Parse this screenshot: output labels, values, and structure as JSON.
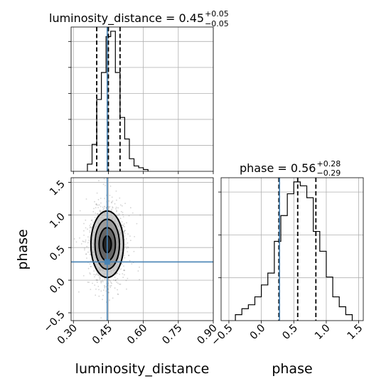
{
  "chart_data": {
    "type": "corner",
    "parameters": [
      "luminosity_distance",
      "phase"
    ],
    "truths": {
      "luminosity_distance": 0.445,
      "phase": 0.28
    },
    "luminosity_distance": {
      "title": "luminosity_distance = 0.45",
      "title_sup": "+0.05",
      "title_sub": "−0.05",
      "xlabel": "luminosity_distance",
      "xlim": [
        0.29,
        0.9
      ],
      "xticks": [
        "0.30",
        "0.45",
        "0.60",
        "0.75",
        "0.90"
      ],
      "quantiles": [
        0.4,
        0.45,
        0.5
      ],
      "hist_bins": [
        0.36,
        0.38,
        0.4,
        0.42,
        0.44,
        0.46,
        0.48,
        0.5,
        0.52,
        0.54,
        0.56,
        0.58,
        0.6,
        0.62
      ],
      "hist_counts": [
        4,
        15,
        40,
        55,
        75,
        78,
        55,
        30,
        18,
        7,
        3,
        2,
        1
      ]
    },
    "phase": {
      "title": "phase = 0.56",
      "title_sup": "+0.28",
      "title_sub": "−0.29",
      "xlabel": "phase",
      "ylabel": "phase",
      "xlim": [
        -0.62,
        1.57
      ],
      "ylim": [
        -0.62,
        1.57
      ],
      "ticks": [
        "−0.5",
        "0.0",
        "0.5",
        "1.0",
        "1.5"
      ],
      "quantiles": [
        0.27,
        0.56,
        0.84
      ],
      "hist_bins": [
        -0.4,
        -0.3,
        -0.2,
        -0.1,
        0.0,
        0.1,
        0.2,
        0.3,
        0.4,
        0.5,
        0.6,
        0.7,
        0.8,
        0.9,
        1.0,
        1.1,
        1.2,
        1.3,
        1.4
      ],
      "hist_counts": [
        3,
        6,
        8,
        12,
        18,
        24,
        40,
        53,
        64,
        70,
        68,
        62,
        45,
        35,
        22,
        12,
        7,
        3
      ]
    },
    "scatter": {
      "mean": [
        0.445,
        0.55
      ],
      "sd": [
        0.035,
        0.3
      ],
      "contour_levels": [
        0.5,
        1.0,
        1.5,
        2.0
      ]
    },
    "colors": {
      "truth": "#4682b4",
      "hist": "#000000",
      "grid": "#b0b0b0",
      "points": "#555555"
    }
  }
}
